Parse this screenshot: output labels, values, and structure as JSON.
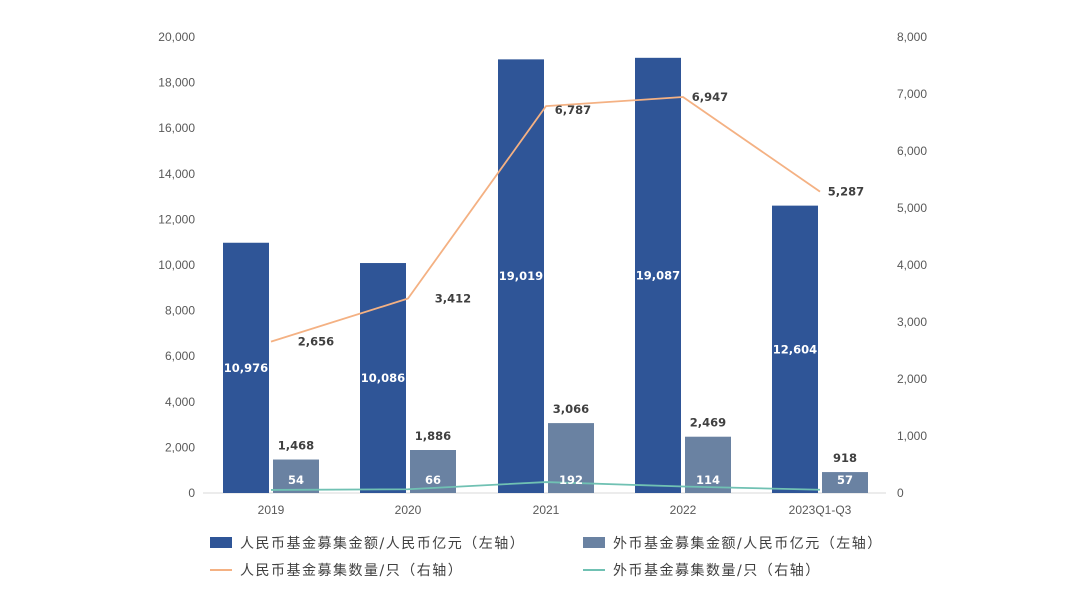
{
  "chart_data": {
    "type": "bar",
    "categories": [
      "2019",
      "2020",
      "2021",
      "2022",
      "2023Q1-Q3"
    ],
    "left_axis": {
      "ylim": [
        0,
        20000
      ],
      "ticks": [
        "0",
        "2,000",
        "4,000",
        "6,000",
        "8,000",
        "10,000",
        "12,000",
        "14,000",
        "16,000",
        "18,000",
        "20,000"
      ]
    },
    "right_axis": {
      "ylim": [
        0,
        8000
      ],
      "ticks": [
        "0",
        "1,000",
        "2,000",
        "3,000",
        "4,000",
        "5,000",
        "6,000",
        "7,000",
        "8,000"
      ]
    },
    "series": [
      {
        "name": "人民币基金募集金额/人民币亿元（左轴）",
        "kind": "bar",
        "axis": "left",
        "color": "#2F5597",
        "values": [
          10976,
          10086,
          19019,
          19087,
          12604
        ],
        "labels": [
          "10,976",
          "10,086",
          "19,019",
          "19,087",
          "12,604"
        ]
      },
      {
        "name": "外币基金募集金额/人民币亿元（左轴）",
        "kind": "bar",
        "axis": "left",
        "color": "#6A82A2",
        "values": [
          1468,
          1886,
          3066,
          2469,
          918
        ],
        "labels": [
          "1,468",
          "1,886",
          "3,066",
          "2,469",
          "918"
        ]
      },
      {
        "name": "人民币基金募集数量/只（右轴）",
        "kind": "line",
        "axis": "right",
        "color": "#F4B183",
        "values": [
          2656,
          3412,
          6787,
          6947,
          5287
        ],
        "labels": [
          "2,656",
          "3,412",
          "6,787",
          "6,947",
          "5,287"
        ]
      },
      {
        "name": "外币基金募集数量/只（右轴）",
        "kind": "line",
        "axis": "right",
        "color": "#70C1B3",
        "values": [
          54,
          66,
          192,
          114,
          57
        ],
        "labels": [
          "54",
          "66",
          "192",
          "114",
          "57"
        ]
      }
    ],
    "legend_position": "bottom",
    "grid": false
  }
}
